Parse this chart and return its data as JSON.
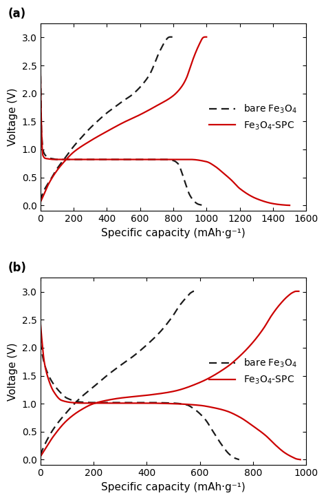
{
  "panel_a": {
    "bare_discharge_x": [
      0,
      8,
      20,
      40,
      60,
      80,
      100,
      150,
      200,
      300,
      400,
      500,
      600,
      700,
      750,
      800,
      830,
      850,
      870,
      900,
      930,
      950,
      970,
      978
    ],
    "bare_discharge_y": [
      2.75,
      1.3,
      0.95,
      0.87,
      0.84,
      0.83,
      0.82,
      0.82,
      0.82,
      0.82,
      0.82,
      0.82,
      0.82,
      0.82,
      0.82,
      0.8,
      0.74,
      0.6,
      0.42,
      0.18,
      0.06,
      0.02,
      0.005,
      0.0
    ],
    "bare_charge_x": [
      0,
      20,
      60,
      100,
      150,
      200,
      250,
      300,
      350,
      400,
      450,
      500,
      550,
      580,
      620,
      660,
      690,
      710,
      730,
      750,
      760,
      770,
      780,
      790,
      795
    ],
    "bare_charge_y": [
      0.08,
      0.25,
      0.45,
      0.65,
      0.85,
      1.05,
      1.22,
      1.38,
      1.52,
      1.65,
      1.76,
      1.87,
      1.97,
      2.05,
      2.18,
      2.35,
      2.55,
      2.7,
      2.82,
      2.93,
      2.97,
      3.0,
      3.01,
      3.01,
      3.01
    ],
    "spc_discharge_x": [
      0,
      5,
      15,
      30,
      50,
      80,
      100,
      200,
      300,
      400,
      500,
      600,
      700,
      800,
      900,
      1000,
      1050,
      1100,
      1150,
      1200,
      1300,
      1400,
      1450,
      1490,
      1500
    ],
    "spc_discharge_y": [
      2.75,
      1.65,
      0.9,
      0.84,
      0.83,
      0.82,
      0.82,
      0.82,
      0.82,
      0.82,
      0.82,
      0.82,
      0.82,
      0.82,
      0.82,
      0.78,
      0.7,
      0.58,
      0.45,
      0.3,
      0.12,
      0.03,
      0.01,
      0.001,
      0.0
    ],
    "spc_charge_x": [
      0,
      20,
      50,
      100,
      150,
      200,
      300,
      400,
      500,
      600,
      700,
      800,
      850,
      880,
      900,
      920,
      940,
      960,
      970,
      980,
      990,
      995,
      1000
    ],
    "spc_charge_y": [
      0.05,
      0.18,
      0.38,
      0.62,
      0.8,
      0.95,
      1.15,
      1.32,
      1.48,
      1.62,
      1.78,
      1.96,
      2.12,
      2.28,
      2.45,
      2.62,
      2.77,
      2.9,
      2.96,
      3.0,
      3.01,
      3.01,
      3.01
    ],
    "xlim": [
      0,
      1600
    ],
    "xticks": [
      0,
      200,
      400,
      600,
      800,
      1000,
      1200,
      1400,
      1600
    ],
    "ylim": [
      -0.1,
      3.25
    ],
    "yticks": [
      0.0,
      0.5,
      1.0,
      1.5,
      2.0,
      2.5,
      3.0
    ],
    "xlabel": "Specific capacity (mAh·g⁻¹)",
    "ylabel": "Voltage (V)",
    "label": "(a)"
  },
  "panel_b": {
    "bare_discharge_x": [
      0,
      5,
      15,
      30,
      50,
      80,
      100,
      150,
      200,
      300,
      400,
      500,
      550,
      580,
      620,
      650,
      680,
      710,
      730,
      745,
      748
    ],
    "bare_discharge_y": [
      2.1,
      1.95,
      1.72,
      1.52,
      1.35,
      1.18,
      1.1,
      1.03,
      1.02,
      1.02,
      1.02,
      1.01,
      0.98,
      0.9,
      0.72,
      0.5,
      0.28,
      0.1,
      0.03,
      0.005,
      0.0
    ],
    "bare_charge_x": [
      0,
      20,
      50,
      100,
      150,
      200,
      250,
      300,
      350,
      400,
      450,
      500,
      520,
      540,
      555,
      565,
      572,
      576,
      578
    ],
    "bare_charge_y": [
      0.08,
      0.3,
      0.55,
      0.85,
      1.1,
      1.3,
      1.5,
      1.68,
      1.85,
      2.05,
      2.28,
      2.58,
      2.73,
      2.85,
      2.93,
      2.98,
      3.0,
      3.01,
      3.01
    ],
    "spc_discharge_x": [
      0,
      5,
      15,
      30,
      50,
      80,
      120,
      160,
      200,
      300,
      400,
      500,
      600,
      650,
      700,
      750,
      800,
      850,
      880,
      920,
      950,
      965,
      975,
      978
    ],
    "spc_discharge_y": [
      2.48,
      2.2,
      1.75,
      1.45,
      1.22,
      1.06,
      1.02,
      1.01,
      1.01,
      1.01,
      1.01,
      1.0,
      0.97,
      0.93,
      0.87,
      0.76,
      0.6,
      0.42,
      0.28,
      0.12,
      0.04,
      0.01,
      0.003,
      0.0
    ],
    "spc_charge_x": [
      0,
      20,
      50,
      100,
      150,
      200,
      250,
      300,
      400,
      500,
      600,
      700,
      750,
      800,
      840,
      870,
      900,
      930,
      950,
      962,
      968,
      972
    ],
    "spc_charge_y": [
      0.05,
      0.2,
      0.42,
      0.7,
      0.88,
      1.0,
      1.06,
      1.1,
      1.15,
      1.22,
      1.38,
      1.65,
      1.85,
      2.1,
      2.35,
      2.58,
      2.77,
      2.92,
      2.99,
      3.01,
      3.01,
      3.01
    ],
    "xlim": [
      0,
      1000
    ],
    "xticks": [
      0,
      200,
      400,
      600,
      800,
      1000
    ],
    "ylim": [
      -0.1,
      3.25
    ],
    "yticks": [
      0.0,
      0.5,
      1.0,
      1.5,
      2.0,
      2.5,
      3.0
    ],
    "xlabel": "Specific capacity (mAh·g⁻¹)",
    "ylabel": "Voltage (V)",
    "label": "(b)"
  },
  "bare_color": "#1a1a1a",
  "bare_linestyle": "--",
  "spc_color": "#cc0000",
  "spc_linestyle": "-",
  "linewidth": 1.6,
  "legend_bare": "bare Fe$_3$O$_4$",
  "legend_spc": "Fe$_3$O$_4$-SPC",
  "bg_color": "#ffffff",
  "tick_fontsize": 10,
  "label_fontsize": 11,
  "legend_fontsize": 10
}
